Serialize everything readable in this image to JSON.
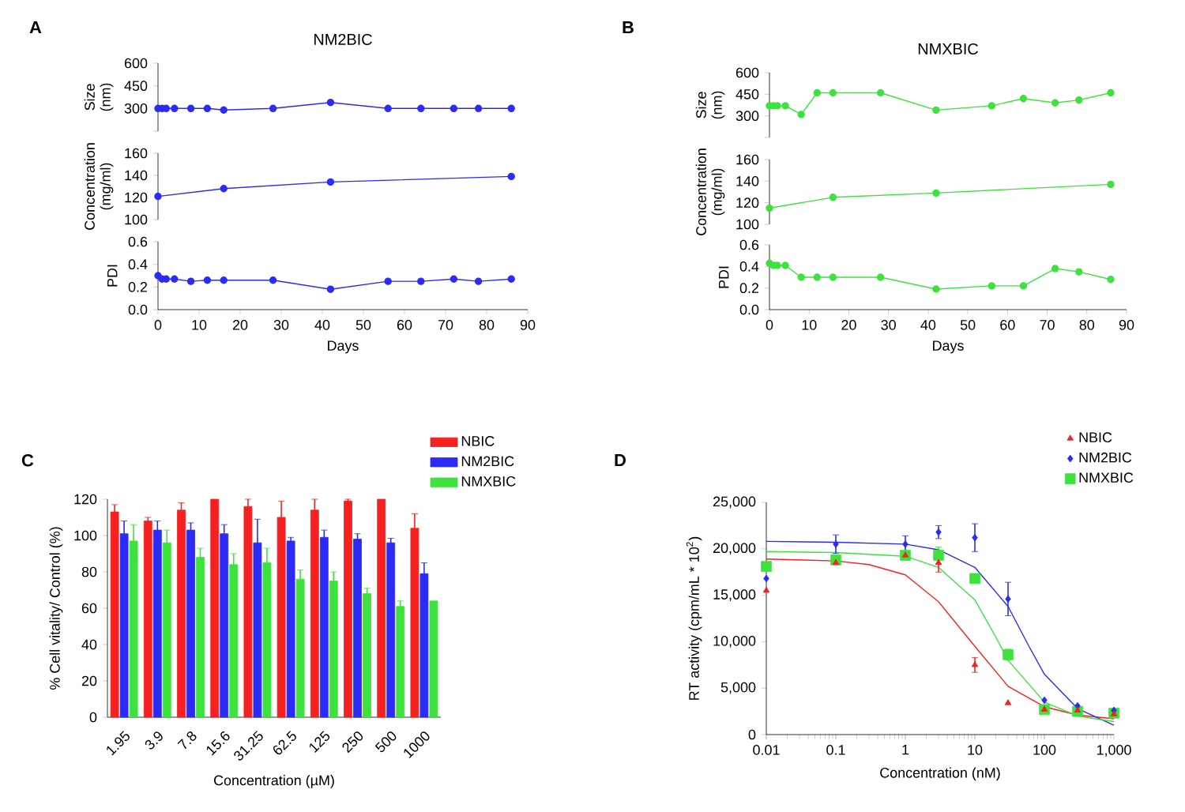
{
  "chart_data": [
    {
      "type": "line",
      "title": "NM2BIC",
      "annotations": [
        "A"
      ],
      "ylabel": "Size (nm)",
      "x": [
        0,
        1,
        2,
        4,
        8,
        12,
        16,
        28,
        42,
        56,
        64,
        72,
        78,
        86
      ],
      "values": [
        300,
        300,
        300,
        300,
        300,
        300,
        290,
        300,
        340,
        300,
        300,
        300,
        300,
        300
      ],
      "color": "#2b2bf5",
      "xlim": [
        0,
        90
      ],
      "ylim": [
        150,
        600
      ],
      "yticks": [
        {
          "value": 150,
          "label": null
        },
        300,
        450,
        600
      ],
      "tick_labels": "y",
      "marker": "circle"
    },
    {
      "type": "line",
      "ylabel": "Concentration (mg/ml)",
      "x": [
        0,
        16,
        42,
        86
      ],
      "values": [
        121,
        128,
        134,
        139
      ],
      "color": "#2b2bf5",
      "xlim": [
        0,
        90
      ],
      "ylim": [
        100,
        160
      ],
      "yticks": [
        100,
        120,
        140,
        160
      ],
      "tick_labels": "y",
      "marker": "circle"
    },
    {
      "type": "line",
      "ylabel": "PDI",
      "xlabel": "Days",
      "x": [
        0,
        1,
        2,
        4,
        8,
        12,
        16,
        28,
        42,
        56,
        64,
        72,
        78,
        86
      ],
      "values": [
        0.3,
        0.27,
        0.27,
        0.27,
        0.25,
        0.26,
        0.26,
        0.26,
        0.18,
        0.25,
        0.25,
        0.27,
        0.25,
        0.27
      ],
      "color": "#2b2bf5",
      "xlim": [
        0,
        90
      ],
      "xticks": [
        0,
        10,
        20,
        30,
        40,
        50,
        60,
        70,
        80,
        90
      ],
      "ylim": [
        0,
        0.6
      ],
      "yticks": [
        {
          "value": 0,
          "label": "0.0"
        },
        0.2,
        0.4,
        0.6
      ],
      "marker": "circle"
    },
    {
      "type": "line",
      "title": "NMXBIC",
      "annotations": [
        "B"
      ],
      "ylabel": "Size (nm)",
      "x": [
        0,
        1,
        2,
        4,
        8,
        12,
        16,
        28,
        42,
        56,
        64,
        72,
        78,
        86
      ],
      "values": [
        370,
        370,
        370,
        370,
        310,
        460,
        460,
        460,
        340,
        370,
        420,
        390,
        410,
        460
      ],
      "color": "#3de23d",
      "xlim": [
        0,
        90
      ],
      "ylim": [
        150,
        600
      ],
      "yticks": [
        {
          "value": 150,
          "label": null
        },
        300,
        450,
        600
      ],
      "tick_labels": "y",
      "marker": "circle"
    },
    {
      "type": "line",
      "ylabel": "Concentration (mg/ml)",
      "x": [
        0,
        16,
        42,
        86
      ],
      "values": [
        115,
        125,
        129,
        137
      ],
      "color": "#3de23d",
      "xlim": [
        0,
        90
      ],
      "ylim": [
        100,
        160
      ],
      "yticks": [
        100,
        120,
        140,
        160
      ],
      "tick_labels": "y",
      "marker": "circle"
    },
    {
      "type": "line",
      "ylabel": "PDI",
      "xlabel": "Days",
      "x": [
        0,
        1,
        2,
        4,
        8,
        12,
        16,
        28,
        42,
        56,
        64,
        72,
        78,
        86
      ],
      "values": [
        0.43,
        0.41,
        0.41,
        0.41,
        0.3,
        0.3,
        0.3,
        0.3,
        0.19,
        0.22,
        0.22,
        0.38,
        0.35,
        0.28
      ],
      "color": "#3de23d",
      "xlim": [
        0,
        90
      ],
      "xticks": [
        0,
        10,
        20,
        30,
        40,
        50,
        60,
        70,
        80,
        90
      ],
      "ylim": [
        0,
        0.6
      ],
      "yticks": [
        {
          "value": 0,
          "label": "0.0"
        },
        0.2,
        0.4,
        0.6
      ],
      "marker": "circle"
    },
    {
      "type": "bar",
      "annotations": [
        "C"
      ],
      "categories": [
        "1.95",
        "3.9",
        "7.8",
        "15.6",
        "31.25",
        "62.5",
        "125",
        "250",
        "500",
        "1000"
      ],
      "xlabel": "Concentration (µM)",
      "ylabel": "% Cell vitality/ Control (%)",
      "ylim": [
        0,
        120
      ],
      "yticks": [
        0,
        20,
        40,
        60,
        80,
        100,
        120
      ],
      "legend": "top right",
      "series": [
        {
          "name": "NBIC",
          "color": "#f52020",
          "values": [
            113,
            108,
            114,
            120,
            116,
            110,
            114,
            119,
            120,
            104
          ],
          "errors": [
            4,
            2,
            4,
            null,
            4,
            9,
            6,
            1,
            null,
            8
          ]
        },
        {
          "name": "NM2BIC",
          "color": "#2b2bf5",
          "values": [
            101,
            103,
            103,
            101,
            96,
            97,
            99,
            98,
            96,
            79
          ],
          "errors": [
            7,
            5,
            4,
            5,
            13,
            2,
            4,
            3,
            2.5,
            6
          ]
        },
        {
          "name": "NMXBIC",
          "color": "#3de23d",
          "values": [
            97,
            96,
            88,
            84,
            85,
            76,
            75,
            68,
            61,
            64
          ],
          "errors": [
            9,
            7,
            5,
            6,
            8,
            5,
            5,
            3,
            3,
            null
          ]
        }
      ]
    },
    {
      "type": "scatter",
      "annotations": [
        "D"
      ],
      "log": "x",
      "xlim": [
        0.01,
        1000
      ],
      "xticks": [
        0.01,
        0.1,
        1,
        10,
        100,
        {
          "value": 1000,
          "label": "1,000"
        }
      ],
      "ylim": [
        0,
        25000
      ],
      "yticks": [
        0,
        {
          "value": 5000,
          "label": "5,000"
        },
        {
          "value": 10000,
          "label": "10,000"
        },
        {
          "value": 15000,
          "label": "15,000"
        },
        {
          "value": 20000,
          "label": "20,000"
        },
        {
          "value": 25000,
          "label": "25,000"
        }
      ],
      "xlabel": "Concentration (nM)",
      "ylabel": "RT activity (cpm/mL * 10$^{2}$)",
      "legend": "top right",
      "series": [
        {
          "type": "line",
          "marker": "none",
          "color": "#f52020",
          "x": [
            0.01,
            0.1,
            0.3,
            1,
            3,
            10,
            30,
            100,
            300,
            1000
          ],
          "values": [
            18900,
            18700,
            18300,
            17200,
            14300,
            9500,
            5200,
            3000,
            2100,
            1700
          ]
        },
        {
          "type": "line",
          "marker": "none",
          "color": "#2b2bf5",
          "x": [
            0.01,
            0.1,
            1,
            3,
            10,
            30,
            60,
            100,
            300,
            1000
          ],
          "values": [
            20800,
            20700,
            20500,
            19900,
            18000,
            13800,
            9500,
            6500,
            2800,
            1000
          ]
        },
        {
          "type": "line",
          "marker": "none",
          "color": "#3de23d",
          "x": [
            0.01,
            0.1,
            1,
            3,
            10,
            20,
            30,
            100,
            300,
            1000
          ],
          "values": [
            19700,
            19600,
            19200,
            18000,
            14500,
            10500,
            8000,
            3500,
            2000,
            1400
          ]
        },
        {
          "name": "NBIC",
          "marker": "triangle",
          "color": "#f52020",
          "x": [
            0.01,
            0.1,
            1,
            3,
            10,
            30,
            100,
            300,
            1000
          ],
          "values": [
            15500,
            18500,
            19300,
            18500,
            7500,
            3400,
            2700,
            2600,
            2200
          ],
          "errors": [
            null,
            null,
            null,
            1000,
            800,
            null,
            null,
            null,
            null
          ]
        },
        {
          "name": "NM2BIC",
          "marker": "diamond",
          "color": "#2b2bf5",
          "x": [
            0.01,
            0.1,
            1,
            3,
            10,
            30,
            100,
            300,
            1000
          ],
          "values": [
            16800,
            20500,
            20500,
            21800,
            21200,
            14600,
            3700,
            3100,
            2600
          ],
          "errors": [
            null,
            1000,
            900,
            700,
            1500,
            1800,
            null,
            null,
            null
          ]
        },
        {
          "name": "NMXBIC",
          "marker": "square",
          "color": "#3de23d",
          "x": [
            0.01,
            0.1,
            1,
            3,
            10,
            30,
            100,
            300,
            1000
          ],
          "values": [
            18100,
            18800,
            19300,
            19300,
            16800,
            8600,
            2700,
            2500,
            2300
          ],
          "errors": [
            null,
            null,
            null,
            900,
            null,
            600,
            null,
            null,
            null
          ]
        }
      ]
    }
  ]
}
